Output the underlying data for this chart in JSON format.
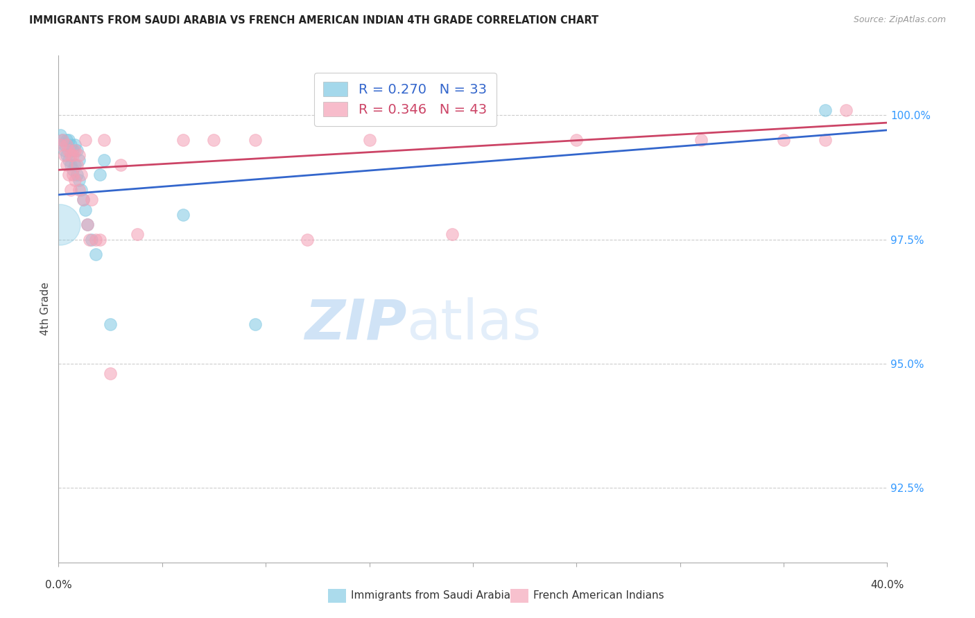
{
  "title": "IMMIGRANTS FROM SAUDI ARABIA VS FRENCH AMERICAN INDIAN 4TH GRADE CORRELATION CHART",
  "source": "Source: ZipAtlas.com",
  "ylabel": "4th Grade",
  "yticks": [
    92.5,
    95.0,
    97.5,
    100.0
  ],
  "ytick_labels": [
    "92.5%",
    "95.0%",
    "97.5%",
    "100.0%"
  ],
  "xlim": [
    0.0,
    0.4
  ],
  "ylim": [
    91.0,
    101.2
  ],
  "blue_R": 0.27,
  "blue_N": 33,
  "pink_R": 0.346,
  "pink_N": 43,
  "blue_color": "#7ec8e3",
  "pink_color": "#f4a0b5",
  "blue_line_color": "#3366cc",
  "pink_line_color": "#cc4466",
  "legend_label_blue": "Immigrants from Saudi Arabia",
  "legend_label_pink": "French American Indians",
  "blue_scatter_x": [
    0.001,
    0.002,
    0.003,
    0.003,
    0.004,
    0.004,
    0.005,
    0.005,
    0.006,
    0.006,
    0.007,
    0.007,
    0.008,
    0.008,
    0.009,
    0.009,
    0.01,
    0.01,
    0.011,
    0.012,
    0.013,
    0.014,
    0.016,
    0.018,
    0.02,
    0.022,
    0.025,
    0.06,
    0.095,
    0.37
  ],
  "blue_scatter_y": [
    99.6,
    99.5,
    99.4,
    99.3,
    99.5,
    99.2,
    99.5,
    99.1,
    99.4,
    99.0,
    99.3,
    98.9,
    99.4,
    99.0,
    99.3,
    98.8,
    99.1,
    98.7,
    98.5,
    98.3,
    98.1,
    97.8,
    97.5,
    97.2,
    98.8,
    99.1,
    95.8,
    98.0,
    95.8,
    100.1
  ],
  "blue_scatter_sizes": [
    120,
    120,
    120,
    120,
    120,
    120,
    120,
    120,
    120,
    120,
    120,
    120,
    120,
    120,
    120,
    120,
    120,
    120,
    120,
    120,
    120,
    120,
    120,
    120,
    120,
    120,
    120,
    120,
    120,
    120
  ],
  "blue_large_x": [
    0.0005
  ],
  "blue_large_y": [
    97.8
  ],
  "blue_large_size": [
    1800
  ],
  "pink_scatter_x": [
    0.001,
    0.002,
    0.003,
    0.004,
    0.004,
    0.005,
    0.005,
    0.006,
    0.006,
    0.007,
    0.007,
    0.008,
    0.008,
    0.009,
    0.01,
    0.01,
    0.011,
    0.012,
    0.013,
    0.014,
    0.015,
    0.016,
    0.018,
    0.02,
    0.022,
    0.025,
    0.03,
    0.038,
    0.06,
    0.075,
    0.095,
    0.12,
    0.15,
    0.19,
    0.25,
    0.31,
    0.35,
    0.37,
    0.38
  ],
  "pink_scatter_y": [
    99.4,
    99.5,
    99.2,
    99.4,
    99.0,
    99.3,
    98.8,
    99.2,
    98.5,
    99.2,
    98.8,
    99.3,
    98.7,
    99.0,
    99.2,
    98.5,
    98.8,
    98.3,
    99.5,
    97.8,
    97.5,
    98.3,
    97.5,
    97.5,
    99.5,
    94.8,
    99.0,
    97.6,
    99.5,
    99.5,
    99.5,
    97.5,
    99.5,
    97.6,
    99.5,
    99.5,
    99.5,
    99.5,
    100.1
  ],
  "pink_scatter_sizes": [
    120,
    120,
    120,
    120,
    120,
    120,
    120,
    120,
    120,
    120,
    120,
    120,
    120,
    120,
    120,
    120,
    120,
    120,
    120,
    120,
    120,
    120,
    120,
    120,
    120,
    120,
    120,
    120,
    120,
    120,
    120,
    120,
    120,
    120,
    120,
    120,
    120,
    120,
    120
  ],
  "blue_trendline_x": [
    0.0,
    0.4
  ],
  "blue_trendline_y": [
    98.4,
    99.7
  ],
  "pink_trendline_x": [
    0.0,
    0.4
  ],
  "pink_trendline_y": [
    98.9,
    99.85
  ],
  "watermark_zip": "ZIP",
  "watermark_atlas": "atlas",
  "grid_color": "#cccccc",
  "background_color": "#ffffff",
  "tick_color": "#aaaaaa",
  "right_tick_color": "#3399ff"
}
